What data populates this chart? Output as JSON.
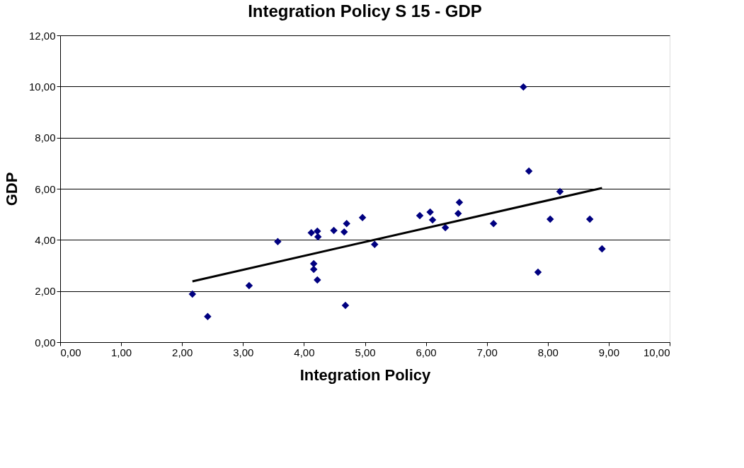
{
  "chart_data": {
    "type": "scatter",
    "title": "Integration Policy S 15 - GDP",
    "xlabel": "Integration Policy",
    "ylabel": "GDP",
    "xlim": [
      0,
      10
    ],
    "ylim": [
      0,
      12
    ],
    "xticks": [
      {
        "value": 0,
        "label": "0,00"
      },
      {
        "value": 1,
        "label": "1,00"
      },
      {
        "value": 2,
        "label": "2,00"
      },
      {
        "value": 3,
        "label": "3,00"
      },
      {
        "value": 4,
        "label": "4,00"
      },
      {
        "value": 5,
        "label": "5,00"
      },
      {
        "value": 6,
        "label": "6,00"
      },
      {
        "value": 7,
        "label": "7,00"
      },
      {
        "value": 8,
        "label": "8,00"
      },
      {
        "value": 9,
        "label": "9,00"
      },
      {
        "value": 10,
        "label": "10,00"
      }
    ],
    "yticks": [
      {
        "value": 0,
        "label": "0,00"
      },
      {
        "value": 2,
        "label": "2,00"
      },
      {
        "value": 4,
        "label": "4,00"
      },
      {
        "value": 6,
        "label": "6,00"
      },
      {
        "value": 8,
        "label": "8,00"
      },
      {
        "value": 10,
        "label": "10,00"
      },
      {
        "value": 12,
        "label": "12,00"
      }
    ],
    "grid": "y",
    "marker": "diamond",
    "series": [
      {
        "color": "#000080",
        "x": [
          2.17,
          2.42,
          3.1,
          3.57,
          4.12,
          4.22,
          4.23,
          4.49,
          4.66,
          4.7,
          4.96,
          5.16,
          4.16,
          4.16,
          4.22,
          4.68,
          7.6,
          7.69,
          8.2,
          5.9,
          6.07,
          6.11,
          6.32,
          6.53,
          6.55,
          7.11,
          8.04,
          8.69,
          8.89,
          7.84
        ],
        "values": [
          1.88,
          1.0,
          2.21,
          3.93,
          4.28,
          4.34,
          4.12,
          4.37,
          4.31,
          4.64,
          4.87,
          3.82,
          3.07,
          2.85,
          2.43,
          1.44,
          9.98,
          6.69,
          5.89,
          4.95,
          5.09,
          4.78,
          4.48,
          5.03,
          5.47,
          4.64,
          4.81,
          4.81,
          3.65,
          2.74
        ]
      },
      {
        "type": "line",
        "color": "#000000",
        "x": [
          2.17,
          8.89
        ],
        "values": [
          2.38,
          6.03
        ],
        "line_style": "solid",
        "marker": "none"
      }
    ]
  }
}
